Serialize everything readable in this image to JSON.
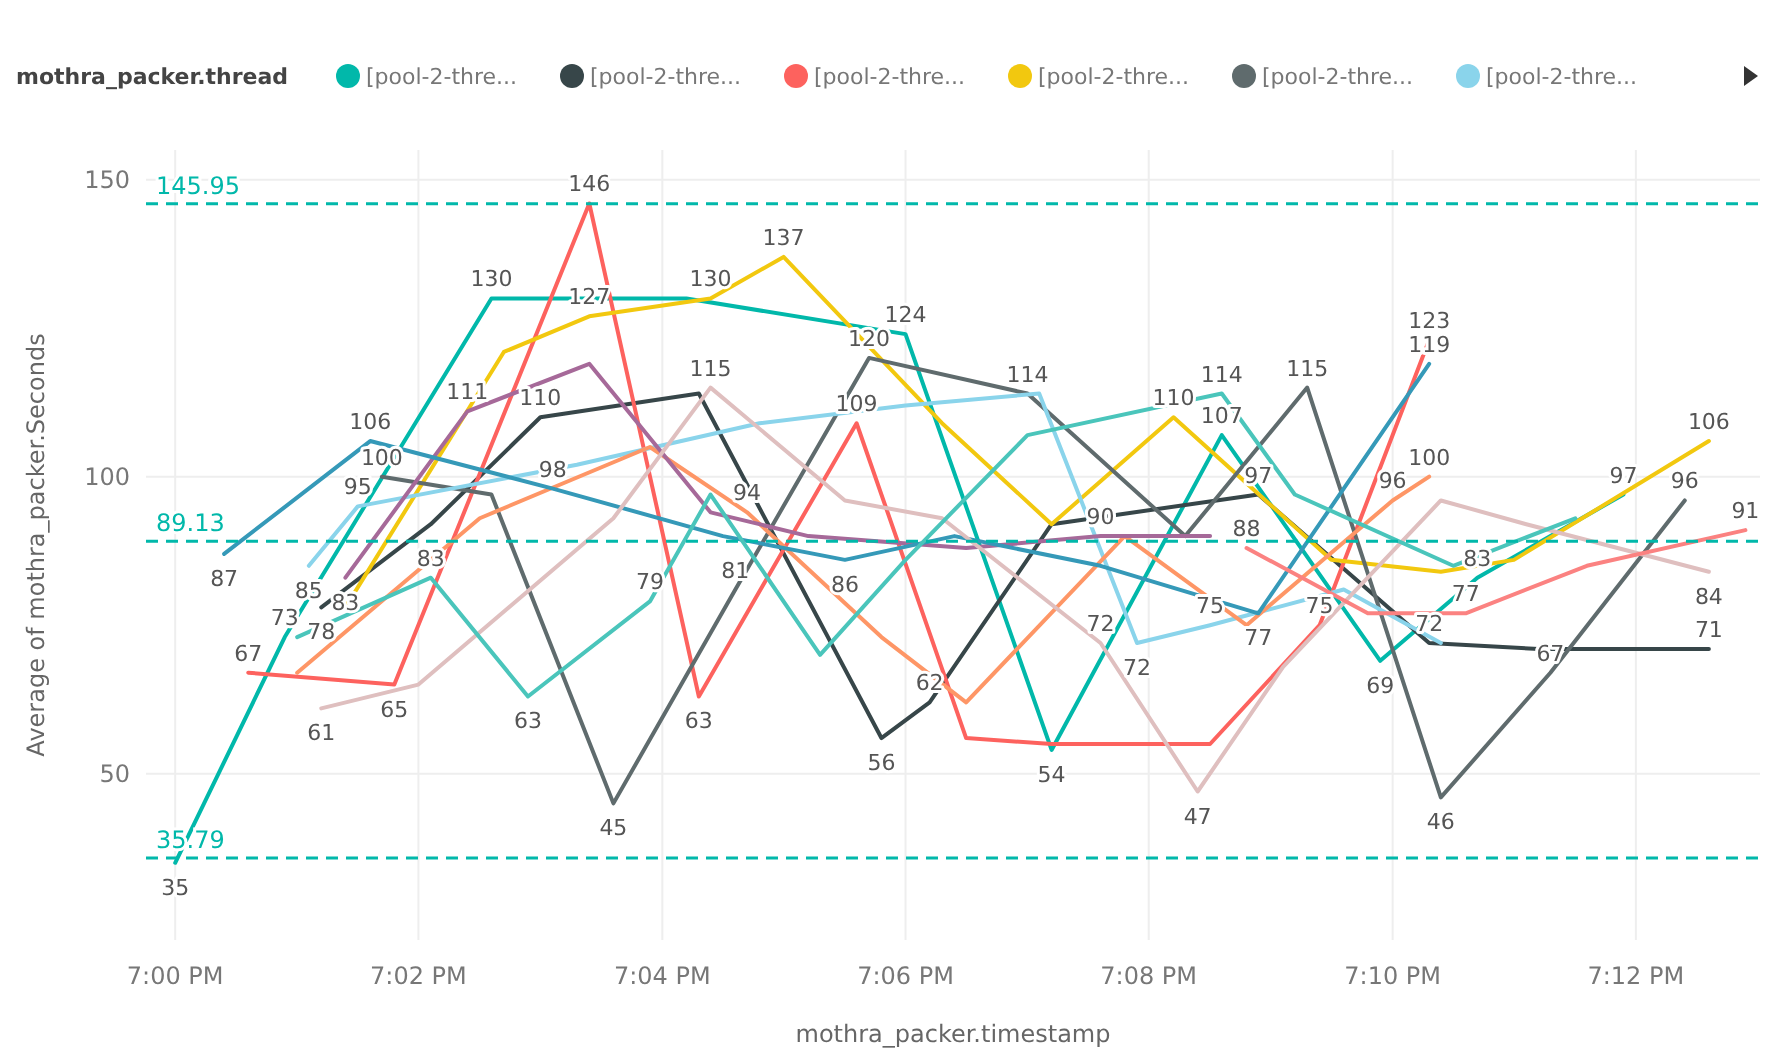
{
  "chart_data": {
    "type": "line",
    "xlabel": "mothra_packer.timestamp",
    "ylabel": "Average of mothra_packer.Seconds",
    "legend_title": "mothra_packer.thread",
    "legend": "top left",
    "grid": true,
    "marker": "none",
    "line_style": "solid",
    "xlim": [
      18.996,
      19.217
    ],
    "xticks": [
      {
        "value": 19,
        "label": "7:00 PM"
      },
      {
        "value": 19.0333,
        "label": "7:02 PM"
      },
      {
        "value": 19.0667,
        "label": "7:04 PM"
      },
      {
        "value": 19.1,
        "label": "7:06 PM"
      },
      {
        "value": 19.1333,
        "label": "7:08 PM"
      },
      {
        "value": 19.1667,
        "label": "7:10 PM"
      },
      {
        "value": 19.2,
        "label": "7:12 PM"
      }
    ],
    "ylim": [
      22,
      155
    ],
    "yticks": [
      50,
      100,
      150
    ],
    "ref_lines": [
      {
        "axis": "y",
        "value": 145.95,
        "label": "145.95",
        "color": "#01b8aa",
        "line_style": "dashed"
      },
      {
        "axis": "y",
        "value": 89.13,
        "label": "89.13",
        "color": "#01b8aa",
        "line_style": "dashed"
      },
      {
        "axis": "y",
        "value": 35.79,
        "label": "35.79",
        "color": "#01b8aa",
        "line_style": "dashed"
      }
    ],
    "series": [
      {
        "name": "[pool-2-thre...",
        "color": "#01b8aa",
        "x": [
          19,
          19.015,
          19.0433,
          19.07,
          19.1,
          19.12,
          19.1433,
          19.165,
          19.1783,
          19.1983
        ],
        "values": [
          35,
          73,
          130,
          130,
          124,
          54,
          107,
          69,
          83,
          97
        ],
        "value_labels": [
          "35",
          "73",
          "130",
          null,
          "124",
          "54",
          "107",
          "69",
          "83",
          "97"
        ]
      },
      {
        "name": "[pool-2-thre...",
        "color": "#374649",
        "x": [
          19.02,
          19.035,
          19.05,
          19.0717,
          19.0967,
          19.1033,
          19.12,
          19.1483,
          19.1717,
          19.1867,
          19.21
        ],
        "values": [
          78,
          92,
          110,
          114,
          56,
          62,
          92,
          97,
          72,
          71,
          71
        ],
        "value_labels": [
          "78",
          null,
          "110",
          null,
          "56",
          "62",
          null,
          "97",
          "72",
          null,
          "71"
        ]
      },
      {
        "name": "[pool-2-thre...",
        "color": "#fd625e",
        "x": [
          19.01,
          19.03,
          19.0567,
          19.0717,
          19.0933,
          19.1083,
          19.12,
          19.1417,
          19.1567,
          19.1717
        ],
        "values": [
          67,
          65,
          146,
          63,
          109,
          56,
          55,
          55,
          75,
          123
        ],
        "value_labels": [
          "67",
          "65",
          "146",
          "63",
          "109",
          null,
          null,
          null,
          "75",
          "123"
        ]
      },
      {
        "name": "[pool-2-thre...",
        "color": "#f2c80f",
        "x": [
          19.0233,
          19.045,
          19.0567,
          19.0733,
          19.0833,
          19.105,
          19.12,
          19.1367,
          19.1583,
          19.1733,
          19.1833,
          19.21
        ],
        "values": [
          78,
          121,
          127,
          130,
          137,
          109,
          92,
          110,
          86,
          84,
          86,
          106
        ],
        "value_labels": [
          null,
          null,
          "127",
          "130",
          "137",
          null,
          null,
          "110",
          null,
          null,
          null,
          "106"
        ]
      },
      {
        "name": "[pool-2-thre...",
        "color": "#5f6b6d",
        "x": [
          19.0283,
          19.0433,
          19.06,
          19.0767,
          19.095,
          19.1167,
          19.1383,
          19.155,
          19.1733,
          19.1883,
          19.2067
        ],
        "values": [
          100,
          97,
          45,
          81,
          120,
          114,
          90,
          115,
          46,
          67,
          96
        ],
        "value_labels": [
          "100",
          null,
          "45",
          "81",
          "120",
          "114",
          null,
          "115",
          "46",
          "67",
          "96"
        ]
      },
      {
        "name": "[pool-2-thre...",
        "color": "#8ad4eb",
        "x": [
          19.0183,
          19.025,
          19.055,
          19.08,
          19.1,
          19.1183,
          19.1317,
          19.1417,
          19.16,
          19.1733
        ],
        "values": [
          85,
          95,
          102,
          109,
          112,
          114,
          72,
          75,
          81,
          72
        ],
        "value_labels": [
          "85",
          "95",
          null,
          null,
          null,
          null,
          "72",
          "75",
          null,
          null
        ]
      },
      {
        "color": "#fe9666",
        "x": [
          19.0167,
          19.0417,
          19.065,
          19.0783,
          19.0967,
          19.1083,
          19.13,
          19.1467,
          19.1667,
          19.1717
        ],
        "values": [
          67,
          93,
          105,
          94,
          73,
          62,
          90,
          75,
          96,
          100
        ],
        "value_labels": [
          null,
          null,
          null,
          "94",
          null,
          null,
          null,
          null,
          "96",
          "100"
        ]
      },
      {
        "color": "#a66999",
        "x": [
          19.0233,
          19.04,
          19.0567,
          19.0733,
          19.0867,
          19.1083,
          19.1267,
          19.1417
        ],
        "values": [
          83,
          111,
          119,
          94,
          90,
          88,
          90,
          90
        ],
        "value_labels": [
          "83",
          "111",
          null,
          null,
          null,
          null,
          "90",
          null
        ]
      },
      {
        "color": "#3599b8",
        "x": [
          19.0067,
          19.0267,
          19.0517,
          19.075,
          19.0917,
          19.1067,
          19.1267,
          19.1483,
          19.1717
        ],
        "values": [
          87,
          106,
          98,
          90,
          86,
          90,
          85,
          77,
          119
        ],
        "value_labels": [
          "87",
          "106",
          "98",
          null,
          "86",
          null,
          null,
          "77",
          "119"
        ]
      },
      {
        "color": "#dfbfbf",
        "x": [
          19.02,
          19.0333,
          19.06,
          19.0733,
          19.0917,
          19.105,
          19.1267,
          19.14,
          19.1517,
          19.1733,
          19.185,
          19.21
        ],
        "values": [
          61,
          65,
          93,
          115,
          96,
          93,
          72,
          47,
          68,
          96,
          92,
          84
        ],
        "value_labels": [
          "61",
          null,
          null,
          "115",
          null,
          null,
          "72",
          "47",
          null,
          null,
          null,
          "84"
        ]
      },
      {
        "color": "#4ac5bb",
        "x": [
          19.0167,
          19.035,
          19.0483,
          19.065,
          19.0733,
          19.0883,
          19.1,
          19.1167,
          19.1433,
          19.1533,
          19.175,
          19.1917
        ],
        "values": [
          73,
          83,
          63,
          79,
          97,
          70,
          86,
          107,
          114,
          97,
          85,
          93
        ],
        "value_labels": [
          null,
          "83",
          "63",
          "79",
          null,
          null,
          null,
          null,
          "114",
          null,
          null,
          null
        ]
      },
      {
        "color": "#fb8281",
        "x": [
          19.1467,
          19.1633,
          19.1767,
          19.1933,
          19.215
        ],
        "values": [
          88,
          77,
          77,
          85,
          91
        ],
        "value_labels": [
          "88",
          null,
          "77",
          null,
          "91"
        ]
      }
    ]
  }
}
